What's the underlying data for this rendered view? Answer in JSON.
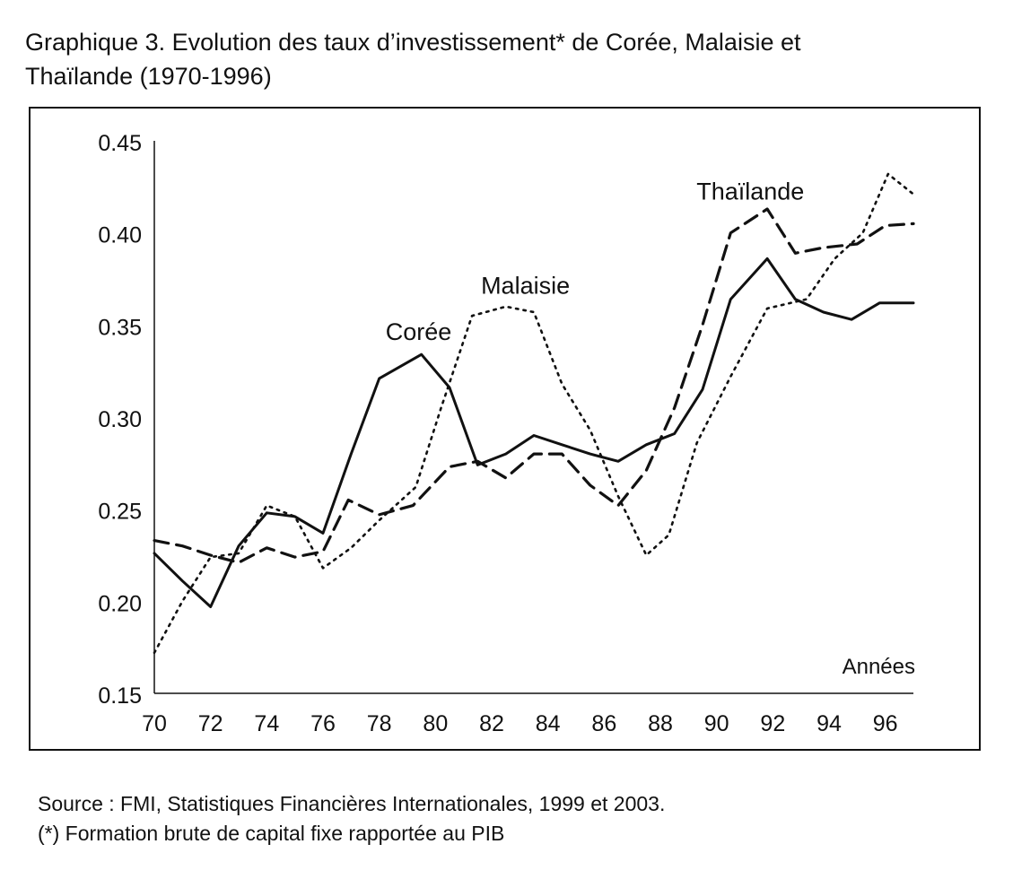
{
  "header": {
    "title_line1": "Graphique 3. Evolution des taux d’investissement* de Corée, Malaisie et",
    "title_line2": "Thaïlande (1970-1996)"
  },
  "chart_data": {
    "type": "line",
    "title": "Graphique 3. Evolution des taux d’investissement* de Corée, Malaisie et Thaïlande (1970-1996)",
    "xlabel": "Années",
    "ylabel": "",
    "xlim": [
      70,
      97
    ],
    "ylim": [
      0.15,
      0.45
    ],
    "x_ticks": [
      70,
      72,
      74,
      76,
      78,
      80,
      82,
      84,
      86,
      88,
      90,
      92,
      94,
      96
    ],
    "x_tick_labels": [
      "70",
      "72",
      "74",
      "76",
      "78",
      "80",
      "82",
      "84",
      "86",
      "88",
      "90",
      "92",
      "94",
      "96"
    ],
    "y_ticks": [
      0.15,
      0.2,
      0.25,
      0.3,
      0.35,
      0.4,
      0.45
    ],
    "y_tick_labels": [
      "0.15",
      "0.20",
      "0.25",
      "0.30",
      "0.35",
      "0.40",
      "0.45"
    ],
    "grid": false,
    "legend": "inline labels",
    "series": [
      {
        "name": "Corée",
        "style": "solid",
        "color": "#111111",
        "label_at": [
          79.4,
          0.342
        ],
        "points": [
          [
            70,
            0.226
          ],
          [
            71,
            0.211
          ],
          [
            72,
            0.197
          ],
          [
            73,
            0.23
          ],
          [
            74,
            0.248
          ],
          [
            75,
            0.246
          ],
          [
            76,
            0.237
          ],
          [
            77,
            0.28
          ],
          [
            78,
            0.321
          ],
          [
            79.5,
            0.334
          ],
          [
            80.5,
            0.316
          ],
          [
            81.5,
            0.274
          ],
          [
            82.5,
            0.28
          ],
          [
            83.5,
            0.29
          ],
          [
            84.5,
            0.285
          ],
          [
            85.5,
            0.28
          ],
          [
            86.5,
            0.276
          ],
          [
            87.5,
            0.285
          ],
          [
            88.5,
            0.291
          ],
          [
            89.5,
            0.315
          ],
          [
            90.5,
            0.364
          ],
          [
            91.8,
            0.386
          ],
          [
            92.8,
            0.364
          ],
          [
            93.8,
            0.357
          ],
          [
            94.8,
            0.353
          ],
          [
            95.8,
            0.362
          ],
          [
            97,
            0.362
          ]
        ]
      },
      {
        "name": "Malaisie",
        "style": "dotted",
        "color": "#111111",
        "label_at": [
          83.2,
          0.367
        ],
        "points": [
          [
            70,
            0.172
          ],
          [
            71,
            0.2
          ],
          [
            72,
            0.224
          ],
          [
            73,
            0.226
          ],
          [
            74,
            0.252
          ],
          [
            75,
            0.246
          ],
          [
            76,
            0.218
          ],
          [
            77,
            0.229
          ],
          [
            78,
            0.244
          ],
          [
            79.3,
            0.262
          ],
          [
            80.2,
            0.305
          ],
          [
            81.3,
            0.355
          ],
          [
            82.5,
            0.36
          ],
          [
            83.5,
            0.357
          ],
          [
            84.5,
            0.318
          ],
          [
            85.5,
            0.293
          ],
          [
            86.5,
            0.257
          ],
          [
            87.5,
            0.225
          ],
          [
            88.3,
            0.236
          ],
          [
            89.3,
            0.286
          ],
          [
            90.5,
            0.322
          ],
          [
            91.8,
            0.359
          ],
          [
            93.2,
            0.364
          ],
          [
            94.2,
            0.386
          ],
          [
            95.2,
            0.4
          ],
          [
            96.1,
            0.432
          ],
          [
            97,
            0.421
          ]
        ]
      },
      {
        "name": "Thaïlande",
        "style": "dashed",
        "color": "#111111",
        "label_at": [
          91.2,
          0.418
        ],
        "points": [
          [
            70,
            0.233
          ],
          [
            71,
            0.23
          ],
          [
            72,
            0.225
          ],
          [
            73,
            0.221
          ],
          [
            74,
            0.229
          ],
          [
            75,
            0.224
          ],
          [
            76,
            0.227
          ],
          [
            76.9,
            0.255
          ],
          [
            78,
            0.247
          ],
          [
            79.2,
            0.252
          ],
          [
            80.5,
            0.273
          ],
          [
            81.5,
            0.276
          ],
          [
            82.5,
            0.267
          ],
          [
            83.5,
            0.28
          ],
          [
            84.5,
            0.28
          ],
          [
            85.5,
            0.263
          ],
          [
            86.5,
            0.252
          ],
          [
            87.5,
            0.271
          ],
          [
            88.5,
            0.305
          ],
          [
            89.5,
            0.35
          ],
          [
            90.5,
            0.4
          ],
          [
            91.8,
            0.413
          ],
          [
            92.8,
            0.389
          ],
          [
            93.8,
            0.392
          ],
          [
            95,
            0.394
          ],
          [
            96,
            0.404
          ],
          [
            97,
            0.405
          ]
        ]
      }
    ]
  },
  "footer": {
    "source": "Source : FMI, Statistiques Financières Internationales, 1999 et 2003.",
    "note": "(*) Formation brute de capital fixe rapportée au PIB"
  }
}
